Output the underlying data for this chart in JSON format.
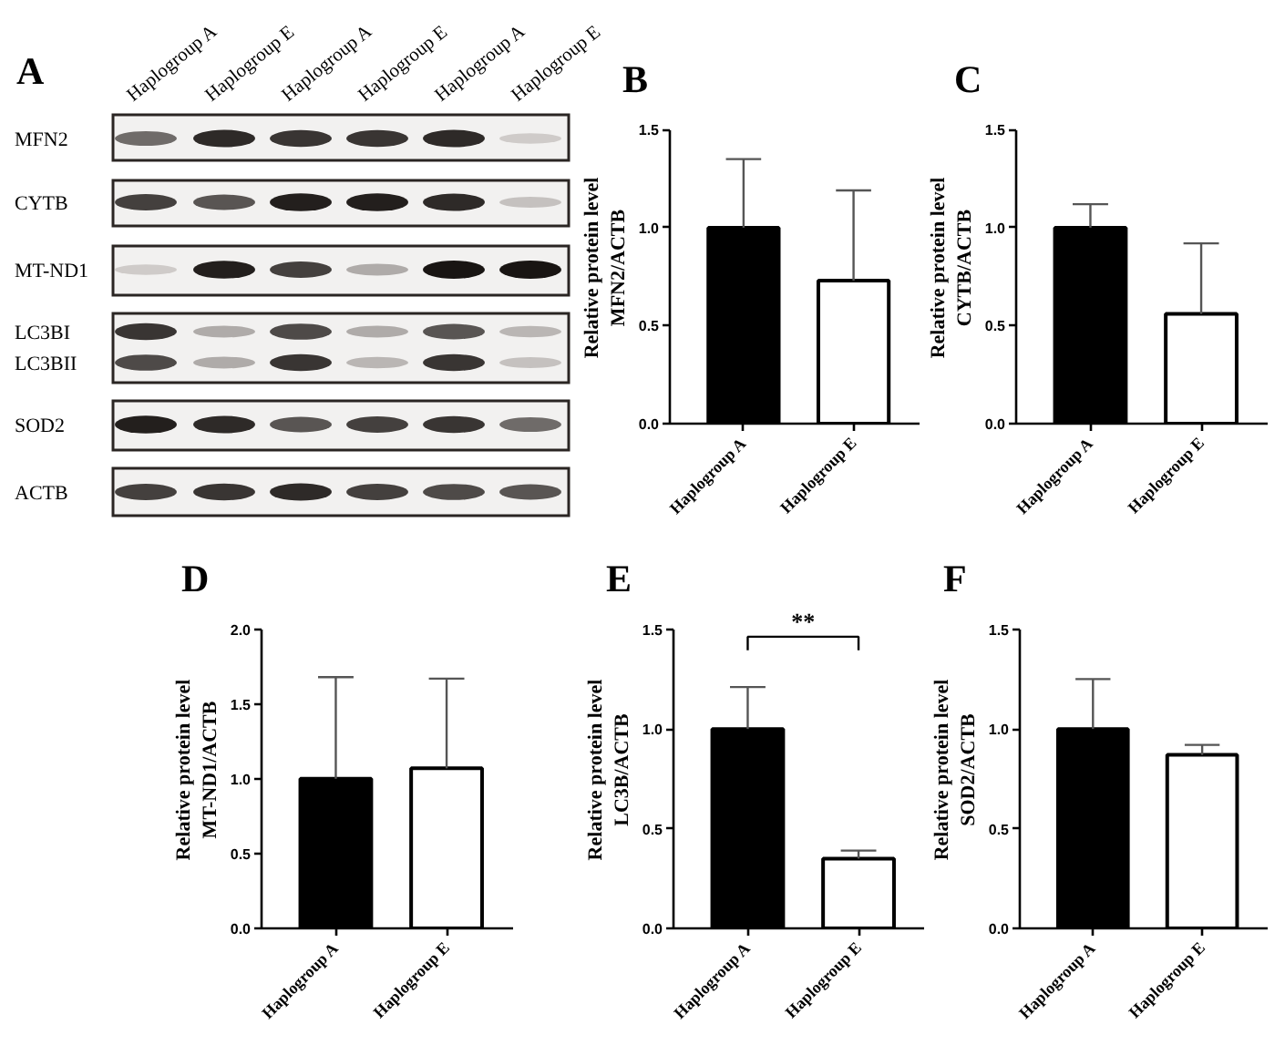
{
  "chart_data": [
    {
      "type": "other",
      "title": "A",
      "categories": [
        "Haplogroup A",
        "Haplogroup E",
        "Haplogroup A",
        "Haplogroup E",
        "Haplogroup A",
        "Haplogroup E"
      ],
      "annotations": [
        "MFN2",
        "CYTB",
        "MT-ND1",
        "LC3BI",
        "LC3BII",
        "SOD2",
        "ACTB"
      ]
    },
    {
      "type": "bar",
      "title": "B",
      "ylabel": "Relative protein level\nMFN2/ACTB",
      "categories": [
        "Haplogroup A",
        "Haplogroup E"
      ],
      "values": [
        1.0,
        0.73
      ],
      "colors": [
        "#000000",
        "#ffffff"
      ],
      "errors": [
        [
          1.0,
          1.35
        ],
        [
          0.73,
          1.19
        ]
      ],
      "ylim": [
        0,
        1.5
      ],
      "yticks": [
        {
          "value": 0,
          "label": "0.0"
        },
        {
          "value": 0.5,
          "label": "0.5"
        },
        {
          "value": 1,
          "label": "1.0"
        },
        {
          "value": 1.5,
          "label": "1.5"
        }
      ]
    },
    {
      "type": "bar",
      "title": "C",
      "ylabel": "Relative protein level\nCYTB/ACTB",
      "categories": [
        "Haplogroup A",
        "Haplogroup E"
      ],
      "values": [
        1.0,
        0.56
      ],
      "colors": [
        "#000000",
        "#ffffff"
      ],
      "errors": [
        [
          1.0,
          1.12
        ],
        [
          0.56,
          0.92
        ]
      ],
      "ylim": [
        0,
        1.5
      ],
      "yticks": [
        {
          "value": 0,
          "label": "0.0"
        },
        {
          "value": 0.5,
          "label": "0.5"
        },
        {
          "value": 1,
          "label": "1.0"
        },
        {
          "value": 1.5,
          "label": "1.5"
        }
      ]
    },
    {
      "type": "bar",
      "title": "D",
      "ylabel": "Relative protein level\nMT-ND1/ACTB",
      "categories": [
        "Haplogroup A",
        "Haplogroup E"
      ],
      "values": [
        1.0,
        1.07
      ],
      "colors": [
        "#000000",
        "#ffffff"
      ],
      "errors": [
        [
          1.0,
          1.68
        ],
        [
          1.07,
          1.67
        ]
      ],
      "ylim": [
        0,
        2
      ],
      "yticks": [
        {
          "value": 0,
          "label": "0.0"
        },
        {
          "value": 0.5,
          "label": "0.5"
        },
        {
          "value": 1,
          "label": "1.0"
        },
        {
          "value": 1.5,
          "label": "1.5"
        },
        {
          "value": 2,
          "label": "2.0"
        }
      ]
    },
    {
      "type": "bar",
      "title": "E",
      "ylabel": "Relative protein level\nLC3B/ACTB",
      "categories": [
        "Haplogroup A",
        "Haplogroup E"
      ],
      "values": [
        1.0,
        0.35
      ],
      "colors": [
        "#000000",
        "#ffffff"
      ],
      "errors": [
        [
          1.0,
          1.21
        ],
        [
          0.35,
          0.39
        ]
      ],
      "ylim": [
        0,
        1.5
      ],
      "yticks": [
        {
          "value": 0,
          "label": "0.0"
        },
        {
          "value": 0.5,
          "label": "0.5"
        },
        {
          "value": 1,
          "label": "1.0"
        },
        {
          "value": 1.5,
          "label": "1.5"
        }
      ],
      "annotations": [
        "**"
      ]
    },
    {
      "type": "bar",
      "title": "F",
      "ylabel": "Relative protein level\nSOD2/ACTB",
      "categories": [
        "Haplogroup A",
        "Haplogroup E"
      ],
      "values": [
        1.0,
        0.87
      ],
      "colors": [
        "#000000",
        "#ffffff"
      ],
      "errors": [
        [
          1.0,
          1.25
        ],
        [
          0.87,
          0.92
        ]
      ],
      "ylim": [
        0,
        1.5
      ],
      "yticks": [
        {
          "value": 0,
          "label": "0.0"
        },
        {
          "value": 0.5,
          "label": "0.5"
        },
        {
          "value": 1,
          "label": "1.0"
        },
        {
          "value": 1.5,
          "label": "1.5"
        }
      ]
    }
  ]
}
